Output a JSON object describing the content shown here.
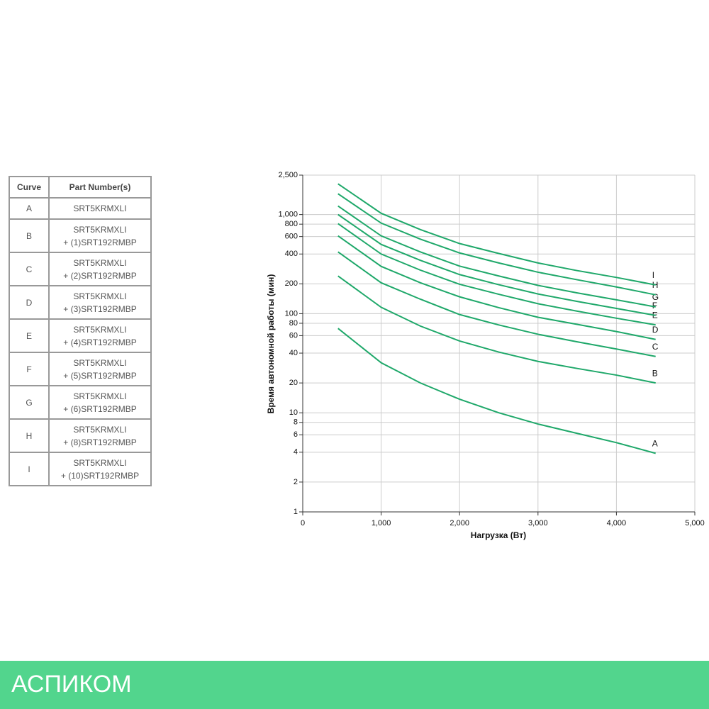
{
  "table": {
    "header": [
      "Curve",
      "Part Number(s)"
    ],
    "rows": [
      {
        "curve": "A",
        "part": [
          "SRT5KRMXLI"
        ]
      },
      {
        "curve": "B",
        "part": [
          "SRT5KRMXLI",
          "+ (1)SRT192RMBP"
        ]
      },
      {
        "curve": "C",
        "part": [
          "SRT5KRMXLI",
          "+ (2)SRT192RMBP"
        ]
      },
      {
        "curve": "D",
        "part": [
          "SRT5KRMXLI",
          "+ (3)SRT192RMBP"
        ]
      },
      {
        "curve": "E",
        "part": [
          "SRT5KRMXLI",
          "+ (4)SRT192RMBP"
        ]
      },
      {
        "curve": "F",
        "part": [
          "SRT5KRMXLI",
          "+ (5)SRT192RMBP"
        ]
      },
      {
        "curve": "G",
        "part": [
          "SRT5KRMXLI",
          "+ (6)SRT192RMBP"
        ]
      },
      {
        "curve": "H",
        "part": [
          "SRT5KRMXLI",
          "+ (8)SRT192RMBP"
        ]
      },
      {
        "curve": "I",
        "part": [
          "SRT5KRMXLI",
          "+ (10)SRT192RMBP"
        ]
      }
    ]
  },
  "chart_data": {
    "type": "line",
    "x_label": "Нагрузка (Вт)",
    "y_label": "Время автономной работы (мин)",
    "x": [
      450,
      1000,
      1500,
      2000,
      2500,
      3000,
      3500,
      4000,
      4500
    ],
    "xlim": [
      0,
      5000
    ],
    "xticks": [
      0,
      {
        "value": 1000,
        "label": "1,000"
      },
      {
        "value": 2000,
        "label": "2,000"
      },
      {
        "value": 3000,
        "label": "3,000"
      },
      {
        "value": 4000,
        "label": "4,000"
      },
      {
        "value": 5000,
        "label": "5,000"
      }
    ],
    "ylim": [
      1,
      2500
    ],
    "log_y": true,
    "grid": true,
    "yticks": [
      1,
      2,
      4,
      6,
      8,
      10,
      20,
      40,
      60,
      80,
      100,
      200,
      400,
      600,
      800,
      {
        "value": 1000,
        "label": "1,000"
      },
      {
        "value": 2500,
        "label": "2,500"
      }
    ],
    "series": [
      {
        "name": "A",
        "color": "#1fa86a",
        "values": [
          71,
          32,
          20,
          13.7,
          10,
          7.7,
          6.2,
          5,
          3.9
        ]
      },
      {
        "name": "B",
        "color": "#1fa86a",
        "values": [
          240,
          116,
          75,
          53,
          41,
          33,
          28,
          24,
          20
        ]
      },
      {
        "name": "C",
        "color": "#1fa86a",
        "values": [
          420,
          205,
          140,
          98,
          77,
          62,
          52,
          44,
          37
        ]
      },
      {
        "name": "D",
        "color": "#1fa86a",
        "values": [
          610,
          300,
          205,
          148,
          115,
          92,
          78,
          66,
          55
        ]
      },
      {
        "name": "E",
        "color": "#1fa86a",
        "values": [
          810,
          400,
          275,
          198,
          157,
          126,
          106,
          90,
          77
        ]
      },
      {
        "name": "F",
        "color": "#1fa86a",
        "values": [
          1000,
          500,
          345,
          248,
          196,
          158,
          133,
          113,
          96
        ]
      },
      {
        "name": "G",
        "color": "#1fa86a",
        "values": [
          1220,
          610,
          420,
          302,
          240,
          193,
          162,
          138,
          117
        ]
      },
      {
        "name": "H",
        "color": "#1fa86a",
        "values": [
          1620,
          820,
          565,
          410,
          325,
          262,
          220,
          186,
          155
        ]
      },
      {
        "name": "I",
        "color": "#1fa86a",
        "values": [
          2040,
          1030,
          705,
          510,
          405,
          325,
          272,
          232,
          195
        ]
      }
    ]
  },
  "footer": {
    "brand": "АСПИКОМ"
  }
}
